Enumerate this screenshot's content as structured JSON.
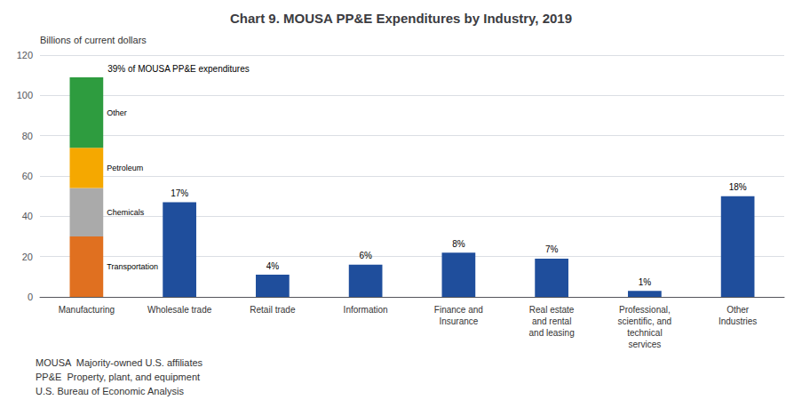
{
  "chart_data": {
    "type": "bar",
    "title": "Chart 9. MOUSA PP&E Expenditures by Industry, 2019",
    "ylabel": "Billions of current dollars",
    "categories": [
      "Manufacturing",
      "Wholesale trade",
      "Retail trade",
      "Information",
      "Finance and\nInsurance",
      "Real estate\nand rental\nand leasing",
      "Professional,\nscientific, and\ntechnical\nservices",
      "Other\nIndustries"
    ],
    "series": [
      {
        "name": "Transportation",
        "color": "#E07020",
        "values": [
          30,
          null,
          null,
          null,
          null,
          null,
          null,
          null
        ]
      },
      {
        "name": "Chemicals",
        "color": "#AAAAAA",
        "values": [
          24,
          null,
          null,
          null,
          null,
          null,
          null,
          null
        ]
      },
      {
        "name": "Petroleum",
        "color": "#F5A800",
        "values": [
          20,
          null,
          null,
          null,
          null,
          null,
          null,
          null
        ]
      },
      {
        "name": "Other",
        "color": "#2E9C3F",
        "values": [
          35,
          null,
          null,
          null,
          null,
          null,
          null,
          null
        ]
      },
      {
        "color": "#1F4E9C",
        "values": [
          null,
          47,
          11,
          16,
          22,
          19,
          3,
          50
        ],
        "share_labels": [
          null,
          "17%",
          "4%",
          "6%",
          "8%",
          "7%",
          "1%",
          "18%"
        ]
      }
    ],
    "stacked": true,
    "annotations": [
      "39% of MOUSA PP&E expenditures"
    ],
    "footnotes": [
      "MOUSA  Majority-owned U.S. affiliates",
      "PP&E  Property, plant, and equipment",
      "U.S. Bureau of Economic Analysis"
    ],
    "ylim": [
      0,
      120
    ],
    "yticks": [
      0,
      20,
      40,
      60,
      80,
      100,
      120
    ],
    "grid": true
  }
}
